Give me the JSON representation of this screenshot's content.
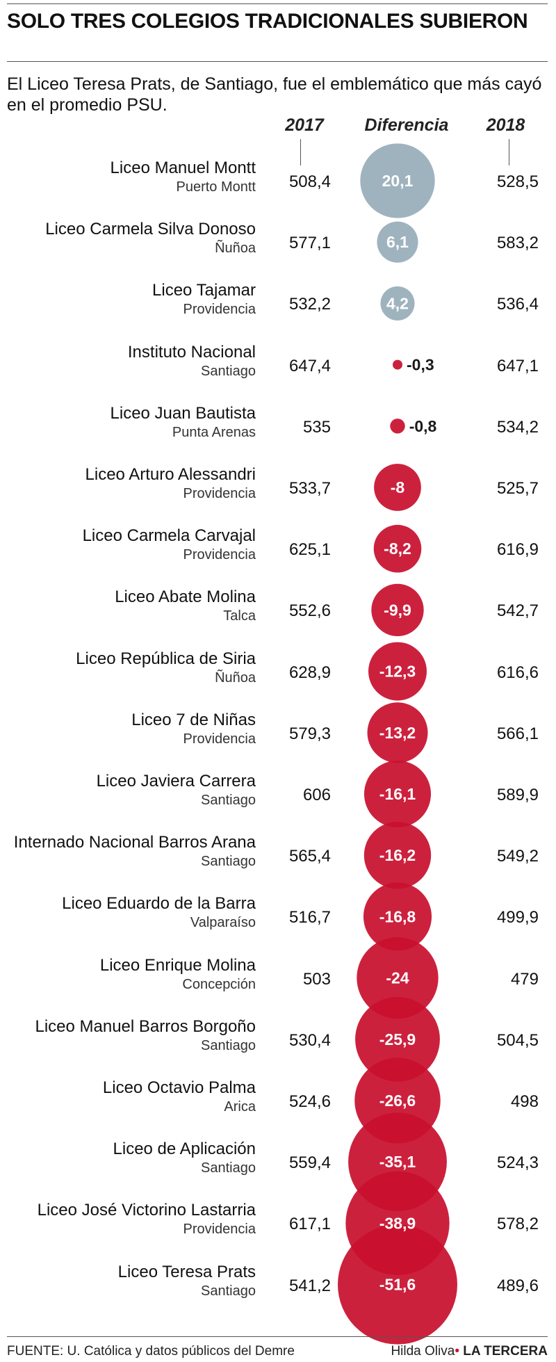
{
  "title": "SOLO TRES COLEGIOS TRADICIONALES SUBIERON",
  "subtitle": "El Liceo Teresa Prats, de Santiago, fue el emblemático que más cayó en el promedio PSU.",
  "footer": {
    "source": "FUENTE: U. Católica y datos públicos del Demre",
    "author": "Hilda Oliva",
    "separator": "•",
    "outlet": "LA TERCERA"
  },
  "colors": {
    "positive": "#9fb3bf",
    "negative": "#c8102e",
    "text": "#1a1a1a"
  },
  "chart_data": {
    "type": "table",
    "columns": [
      "2017",
      "Diferencia",
      "2018"
    ],
    "rows": [
      {
        "name": "Liceo Manuel Montt",
        "city": "Puerto Montt",
        "v2017": "508,4",
        "diff": 20.1,
        "diff_label": "20,1",
        "v2018": "528,5"
      },
      {
        "name": "Liceo Carmela Silva Donoso",
        "city": "Ñuñoa",
        "v2017": "577,1",
        "diff": 6.1,
        "diff_label": "6,1",
        "v2018": "583,2"
      },
      {
        "name": "Liceo Tajamar",
        "city": "Providencia",
        "v2017": "532,2",
        "diff": 4.2,
        "diff_label": "4,2",
        "v2018": "536,4"
      },
      {
        "name": "Instituto Nacional",
        "city": "Santiago",
        "v2017": "647,4",
        "diff": -0.3,
        "diff_label": "-0,3",
        "v2018": "647,1"
      },
      {
        "name": "Liceo Juan Bautista",
        "city": "Punta Arenas",
        "v2017": "535",
        "diff": -0.8,
        "diff_label": "-0,8",
        "v2018": "534,2"
      },
      {
        "name": "Liceo Arturo Alessandri",
        "city": "Providencia",
        "v2017": "533,7",
        "diff": -8,
        "diff_label": "-8",
        "v2018": "525,7"
      },
      {
        "name": "Liceo Carmela Carvajal",
        "city": "Providencia",
        "v2017": "625,1",
        "diff": -8.2,
        "diff_label": "-8,2",
        "v2018": "616,9"
      },
      {
        "name": "Liceo Abate Molina",
        "city": "Talca",
        "v2017": "552,6",
        "diff": -9.9,
        "diff_label": "-9,9",
        "v2018": "542,7"
      },
      {
        "name": "Liceo República de Siria",
        "city": "Ñuñoa",
        "v2017": "628,9",
        "diff": -12.3,
        "diff_label": "-12,3",
        "v2018": "616,6"
      },
      {
        "name": "Liceo 7 de Niñas",
        "city": "Providencia",
        "v2017": "579,3",
        "diff": -13.2,
        "diff_label": "-13,2",
        "v2018": "566,1"
      },
      {
        "name": "Liceo Javiera Carrera",
        "city": "Santiago",
        "v2017": "606",
        "diff": -16.1,
        "diff_label": "-16,1",
        "v2018": "589,9"
      },
      {
        "name": "Internado Nacional Barros Arana",
        "city": "Santiago",
        "v2017": "565,4",
        "diff": -16.2,
        "diff_label": "-16,2",
        "v2018": "549,2"
      },
      {
        "name": "Liceo Eduardo de la Barra",
        "city": "Valparaíso",
        "v2017": "516,7",
        "diff": -16.8,
        "diff_label": "-16,8",
        "v2018": "499,9"
      },
      {
        "name": "Liceo Enrique Molina",
        "city": "Concepción",
        "v2017": "503",
        "diff": -24,
        "diff_label": "-24",
        "v2018": "479"
      },
      {
        "name": "Liceo Manuel Barros Borgoño",
        "city": "Santiago",
        "v2017": "530,4",
        "diff": -25.9,
        "diff_label": "-25,9",
        "v2018": "504,5"
      },
      {
        "name": "Liceo Octavio Palma",
        "city": "Arica",
        "v2017": "524,6",
        "diff": -26.6,
        "diff_label": "-26,6",
        "v2018": "498"
      },
      {
        "name": "Liceo de Aplicación",
        "city": "Santiago",
        "v2017": "559,4",
        "diff": -35.1,
        "diff_label": "-35,1",
        "v2018": "524,3"
      },
      {
        "name": "Liceo José Victorino Lastarria",
        "city": "Providencia",
        "v2017": "617,1",
        "diff": -38.9,
        "diff_label": "-38,9",
        "v2018": "578,2"
      },
      {
        "name": "Liceo Teresa Prats",
        "city": "Santiago",
        "v2017": "541,2",
        "diff": -51.6,
        "diff_label": "-51,6",
        "v2018": "489,6"
      }
    ]
  }
}
